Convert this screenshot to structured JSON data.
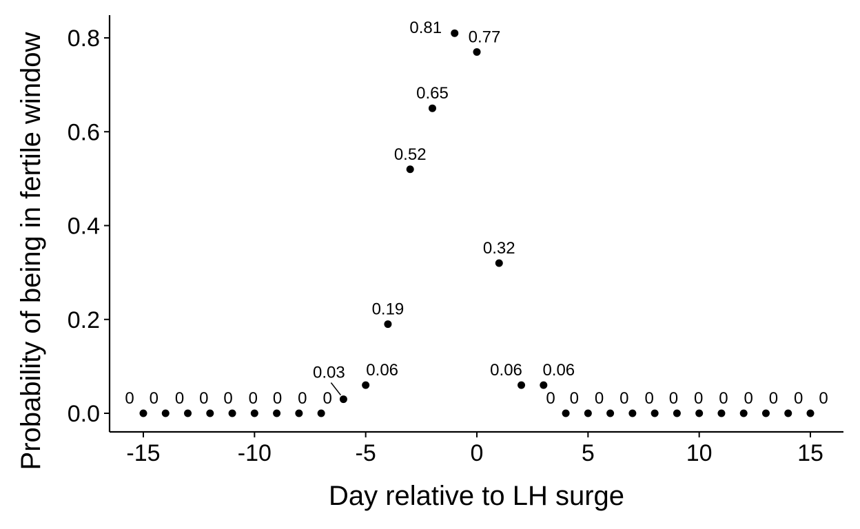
{
  "chart_data": {
    "type": "scatter",
    "title": "",
    "xlabel": "Day relative to LH surge",
    "ylabel": "Probability of being in fertile window",
    "xlim": [
      -16.5,
      16.5
    ],
    "ylim": [
      -0.04,
      0.85
    ],
    "x_ticks": [
      -15,
      -10,
      -5,
      0,
      5,
      10,
      15
    ],
    "x_tick_labels": [
      "-15",
      "-10",
      "-5",
      "0",
      "5",
      "10",
      "15"
    ],
    "y_ticks": [
      0.0,
      0.2,
      0.4,
      0.6,
      0.8
    ],
    "y_tick_labels": [
      "0.0",
      "0.2",
      "0.4",
      "0.6",
      "0.8"
    ],
    "grid": false,
    "legend": "none",
    "point_color": "#000000",
    "points": [
      {
        "x": -15,
        "y": 0,
        "label": "0"
      },
      {
        "x": -14,
        "y": 0,
        "label": "0"
      },
      {
        "x": -13,
        "y": 0,
        "label": "0"
      },
      {
        "x": -12,
        "y": 0,
        "label": "0"
      },
      {
        "x": -11,
        "y": 0,
        "label": "0"
      },
      {
        "x": -10,
        "y": 0,
        "label": "0"
      },
      {
        "x": -9,
        "y": 0,
        "label": "0"
      },
      {
        "x": -8,
        "y": 0,
        "label": "0"
      },
      {
        "x": -7,
        "y": 0,
        "label": "0"
      },
      {
        "x": -6,
        "y": 0.03,
        "label": "0.03"
      },
      {
        "x": -5,
        "y": 0.06,
        "label": "0.06"
      },
      {
        "x": -4,
        "y": 0.19,
        "label": "0.19"
      },
      {
        "x": -3,
        "y": 0.52,
        "label": "0.52"
      },
      {
        "x": -2,
        "y": 0.65,
        "label": "0.65"
      },
      {
        "x": -1,
        "y": 0.81,
        "label": "0.81"
      },
      {
        "x": 0,
        "y": 0.77,
        "label": "0.77"
      },
      {
        "x": 1,
        "y": 0.32,
        "label": "0.32"
      },
      {
        "x": 2,
        "y": 0.06,
        "label": "0.06"
      },
      {
        "x": 3,
        "y": 0.06,
        "label": "0.06"
      },
      {
        "x": 4,
        "y": 0,
        "label": "0"
      },
      {
        "x": 5,
        "y": 0,
        "label": "0"
      },
      {
        "x": 6,
        "y": 0,
        "label": "0"
      },
      {
        "x": 7,
        "y": 0,
        "label": "0"
      },
      {
        "x": 8,
        "y": 0,
        "label": "0"
      },
      {
        "x": 9,
        "y": 0,
        "label": "0"
      },
      {
        "x": 10,
        "y": 0,
        "label": "0"
      },
      {
        "x": 11,
        "y": 0,
        "label": "0"
      },
      {
        "x": 12,
        "y": 0,
        "label": "0"
      },
      {
        "x": 13,
        "y": 0,
        "label": "0"
      },
      {
        "x": 14,
        "y": 0,
        "label": "0"
      },
      {
        "x": 15,
        "y": 0,
        "label": "0"
      }
    ]
  }
}
